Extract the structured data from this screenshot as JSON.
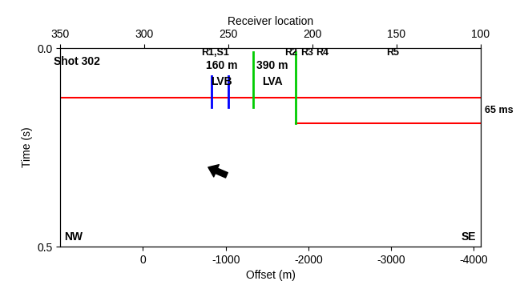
{
  "chart_data": {
    "type": "seismic_section",
    "xlabel": "Offset (m)",
    "x2label": "Receiver location",
    "ylabel": "Time (s)",
    "xlim": [
      1000,
      -4080
    ],
    "xticks": [
      0,
      -1000,
      -2000,
      -3000,
      -4000
    ],
    "x2lim": [
      350,
      100
    ],
    "x2ticks": [
      350,
      300,
      250,
      200,
      150,
      100
    ],
    "ylim": [
      0.5,
      0.0
    ],
    "yticks": [
      0.0,
      0.5
    ],
    "annotations": [
      {
        "text": "Shot 302",
        "receiver": 340,
        "time": 0.035
      },
      {
        "text": "160 m",
        "receiver": 254,
        "time": 0.045
      },
      {
        "text": "LVB",
        "receiver": 254,
        "time": 0.085
      },
      {
        "text": "390 m",
        "receiver": 224,
        "time": 0.045
      },
      {
        "text": "LVA",
        "receiver": 224,
        "time": 0.085
      }
    ],
    "receiver_labels": [
      {
        "text": "R1,S1",
        "receiver": 258
      },
      {
        "text": "R2",
        "receiver": 213
      },
      {
        "text": "R3",
        "receiver": 203
      },
      {
        "text": "R4",
        "receiver": 194
      },
      {
        "text": "R5",
        "receiver": 152
      }
    ],
    "vertical_lines": [
      {
        "receiver": 260,
        "time": [
          0.07,
          0.15
        ],
        "color": "#0000ff"
      },
      {
        "receiver": 250,
        "time": [
          0.07,
          0.15
        ],
        "color": "#0000ff"
      },
      {
        "receiver": 235,
        "time": [
          0.01,
          0.15
        ],
        "color": "#00cc00"
      },
      {
        "receiver": 210,
        "time": [
          0.01,
          0.19
        ],
        "color": "#00cc00"
      }
    ],
    "horizontal_lines": [
      {
        "time": 0.125,
        "receiver": [
          350,
          100
        ],
        "color": "#ff0000"
      },
      {
        "time": 0.19,
        "receiver": [
          210,
          100
        ],
        "color": "#ff0000"
      }
    ],
    "interval_label": {
      "text": "65 ms",
      "time": 0.157
    },
    "corner_labels": {
      "left": "NW",
      "right": "SE"
    },
    "arrow": {
      "tip": {
        "receiver": 262,
        "time": 0.3
      },
      "tail": {
        "receiver": 251,
        "time": 0.32
      }
    }
  }
}
